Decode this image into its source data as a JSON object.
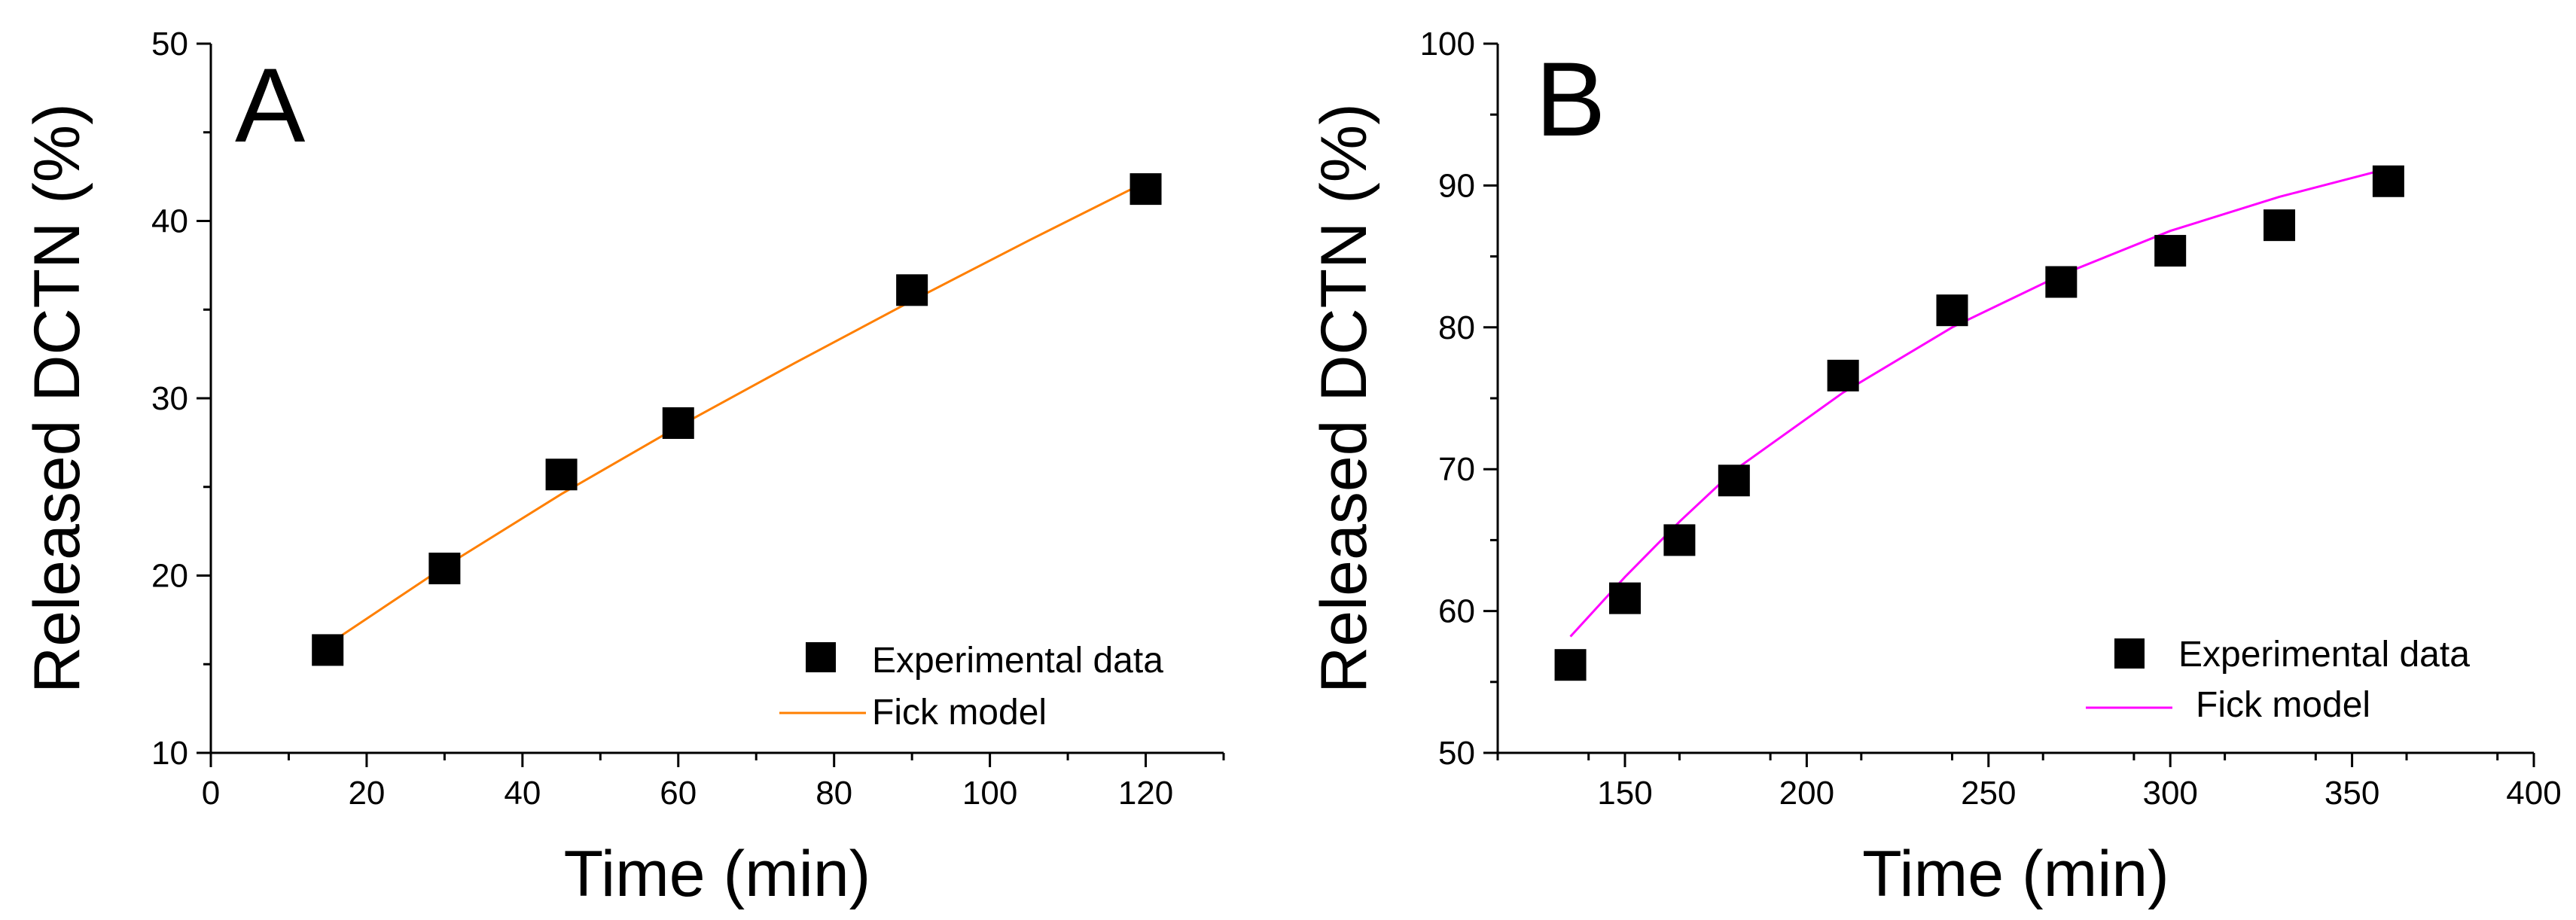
{
  "chart_data": [
    {
      "id": "A",
      "type": "scatter",
      "panel_label": "A",
      "xlabel": "Time (min)",
      "ylabel": "Released DCTN (%)",
      "xlim": [
        0,
        130
      ],
      "ylim": [
        10,
        50
      ],
      "xticks": [
        0,
        20,
        40,
        60,
        80,
        100,
        120
      ],
      "yticks": [
        10,
        20,
        30,
        40,
        50
      ],
      "series": [
        {
          "name": "Experimental data",
          "kind": "markers",
          "color": "#000000",
          "x": [
            15,
            30,
            45,
            60,
            90,
            120
          ],
          "y": [
            15.8,
            20.4,
            25.7,
            28.6,
            36.1,
            41.8
          ]
        },
        {
          "name": "Fick model",
          "kind": "line",
          "color": "#ff7f00",
          "x": [
            15,
            30,
            45,
            60,
            75,
            90,
            105,
            120
          ],
          "y": [
            16.1,
            20.5,
            24.6,
            28.4,
            32.0,
            35.5,
            38.9,
            42.2
          ]
        }
      ],
      "legend": [
        "Experimental data",
        "Fick model"
      ],
      "legend_position": "bottom-right"
    },
    {
      "id": "B",
      "type": "scatter",
      "panel_label": "B",
      "xlabel": "Time (min)",
      "ylabel": "Released DCTN (%)",
      "xlim": [
        115,
        400
      ],
      "ylim": [
        50,
        100
      ],
      "xticks": [
        150,
        200,
        250,
        300,
        350,
        400
      ],
      "yticks": [
        50,
        60,
        70,
        80,
        90,
        100
      ],
      "series": [
        {
          "name": "Experimental data",
          "kind": "markers",
          "color": "#000000",
          "x": [
            135,
            150,
            165,
            180,
            210,
            240,
            270,
            300,
            330,
            360
          ],
          "y": [
            56.2,
            60.9,
            65.0,
            69.2,
            76.6,
            81.2,
            83.2,
            85.4,
            87.2,
            90.3
          ]
        },
        {
          "name": "Fick model",
          "kind": "line",
          "color": "#ff00ff",
          "x": [
            135,
            150,
            165,
            180,
            210,
            240,
            270,
            300,
            330,
            360
          ],
          "y": [
            58.2,
            62.4,
            66.3,
            69.9,
            75.4,
            80.0,
            83.7,
            86.8,
            89.2,
            91.2
          ]
        }
      ],
      "legend": [
        "Experimental data",
        "Fick model"
      ],
      "legend_position": "bottom-right"
    }
  ]
}
